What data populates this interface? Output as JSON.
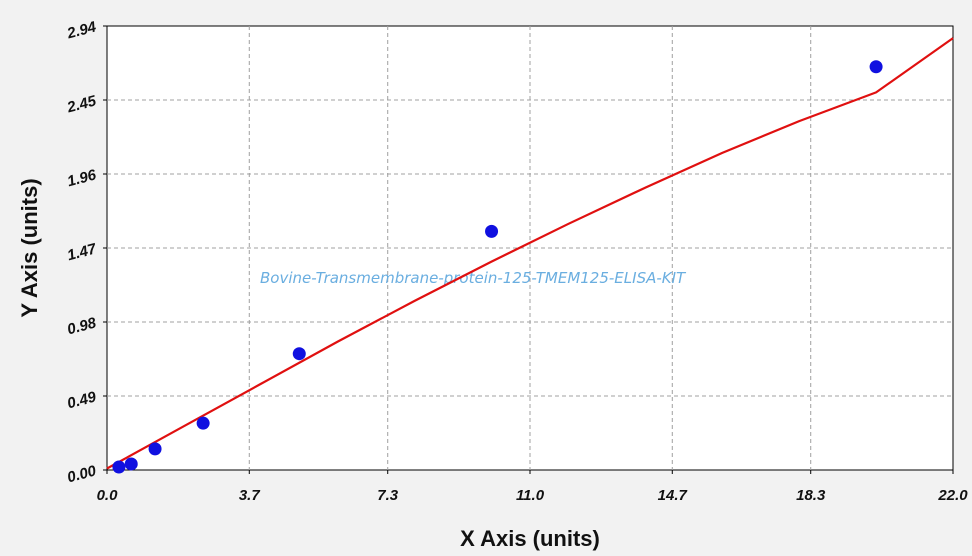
{
  "chart_data": {
    "type": "scatter",
    "title": "",
    "xlabel": "X Axis (units)",
    "ylabel": "Y Axis (units)",
    "xlim": [
      0,
      22
    ],
    "ylim": [
      0,
      2.94
    ],
    "x_ticks": [
      "0.0",
      "3.7",
      "7.3",
      "11.0",
      "14.7",
      "18.3",
      "22.0"
    ],
    "y_ticks": [
      "0.00",
      "0.49",
      "0.98",
      "1.47",
      "1.96",
      "2.45",
      "2.94"
    ],
    "grid": true,
    "grid_style": "dashed",
    "watermark": "Bovine-Transmembrane-protein-125-TMEM125-ELISA-KIT",
    "series": [
      {
        "type": "scatter",
        "color": "#1010e0",
        "x": [
          0.31,
          0.63,
          1.25,
          2.5,
          5.0,
          10.0,
          20.0
        ],
        "y": [
          0.02,
          0.04,
          0.14,
          0.31,
          0.77,
          1.58,
          2.67
        ]
      },
      {
        "type": "line",
        "color": "#e01010",
        "x": [
          0.0,
          2.0,
          4.0,
          6.0,
          8.0,
          10.0,
          12.0,
          14.0,
          16.0,
          18.0,
          20.0,
          22.0
        ],
        "y": [
          0.01,
          0.29,
          0.57,
          0.85,
          1.12,
          1.38,
          1.63,
          1.87,
          2.1,
          2.31,
          2.5,
          2.86
        ]
      }
    ]
  }
}
